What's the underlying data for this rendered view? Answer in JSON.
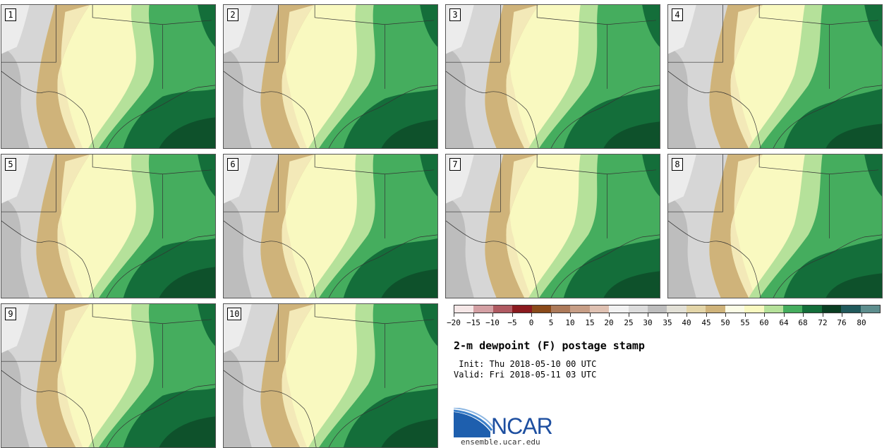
{
  "stamps": [
    {
      "label": "1"
    },
    {
      "label": "2"
    },
    {
      "label": "3"
    },
    {
      "label": "4"
    },
    {
      "label": "5"
    },
    {
      "label": "6"
    },
    {
      "label": "7"
    },
    {
      "label": "8"
    },
    {
      "label": "9"
    },
    {
      "label": "10"
    }
  ],
  "colorbar": {
    "tick_labels": [
      "−20",
      "−15",
      "−10",
      "−5",
      "0",
      "5",
      "10",
      "15",
      "20",
      "25",
      "30",
      "35",
      "40",
      "45",
      "50",
      "55",
      "60",
      "64",
      "68",
      "72",
      "76",
      "80"
    ],
    "colors": [
      "#f5e7e7",
      "#d4a0a4",
      "#b05a62",
      "#8b1a1f",
      "#8a4a1a",
      "#ad7a5a",
      "#c79e86",
      "#dfc1b2",
      "#f2f2f2",
      "#dcdcdc",
      "#bdbdbd",
      "#e2e0d6",
      "#e3d5a8",
      "#cfb37a",
      "#fbfce6",
      "#f9f9c0",
      "#b5e19a",
      "#45ad5e",
      "#146e3a",
      "#0a3e22",
      "#215a5c",
      "#5e8e8e"
    ]
  },
  "title": "2-m dewpoint (F) postage stamp",
  "init": " Init: Thu 2018-05-10 00 UTC",
  "valid": "Valid: Fri 2018-05-11 03 UTC",
  "logo": {
    "text": "NCAR",
    "url": "ensemble.ucar.edu"
  }
}
